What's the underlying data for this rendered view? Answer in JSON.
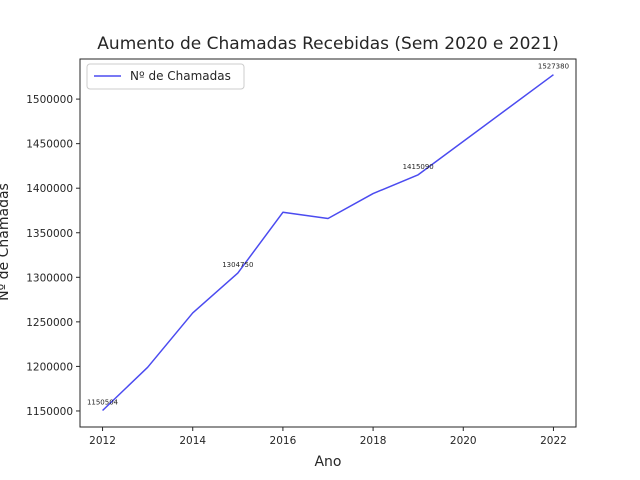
{
  "chart_data": {
    "type": "line",
    "title": "Aumento de Chamadas Recebidas (Sem 2020 e 2021)",
    "xlabel": "Ano",
    "ylabel": "Nº de Chamadas",
    "xlim": [
      2011.5,
      2022.5
    ],
    "ylim": [
      1132000,
      1545000
    ],
    "x_ticks": [
      2012,
      2014,
      2016,
      2018,
      2020,
      2022
    ],
    "y_ticks": [
      1150000,
      1200000,
      1250000,
      1300000,
      1350000,
      1400000,
      1450000,
      1500000
    ],
    "grid": false,
    "legend_position": "top-left",
    "series": [
      {
        "name": "Nº de Chamadas",
        "color": "#4b4bf0",
        "x": [
          2012,
          2013,
          2014,
          2015,
          2016,
          2017,
          2018,
          2019,
          2022
        ],
        "values": [
          1150504,
          1199000,
          1260000,
          1304750,
          1373000,
          1366000,
          1394000,
          1415090,
          1527380
        ]
      }
    ],
    "annotations": [
      {
        "x": 2012,
        "y": 1150504,
        "text": "1150504"
      },
      {
        "x": 2015,
        "y": 1304750,
        "text": "1304750"
      },
      {
        "x": 2019,
        "y": 1415090,
        "text": "1415090"
      },
      {
        "x": 2022,
        "y": 1527380,
        "text": "1527380"
      }
    ]
  }
}
